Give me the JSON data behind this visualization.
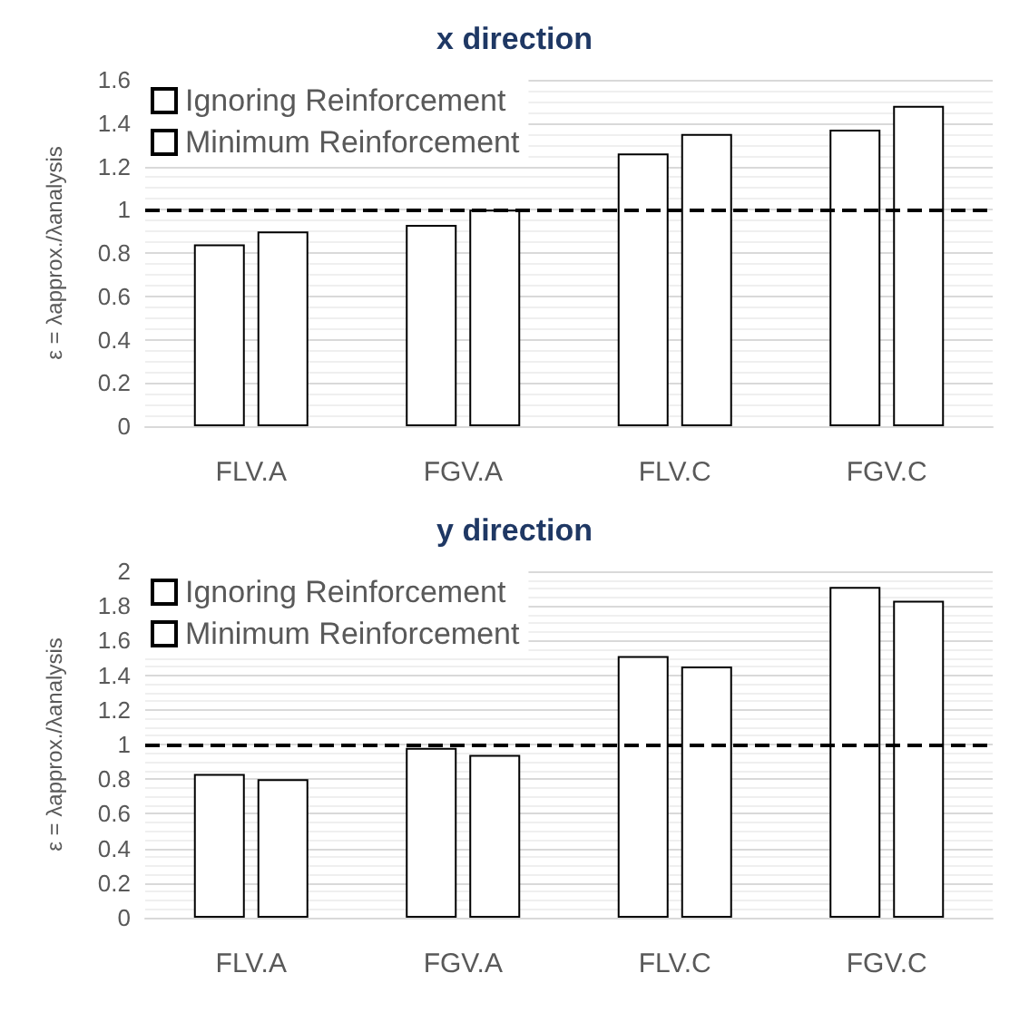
{
  "chart_data": [
    {
      "type": "bar",
      "title": "x direction",
      "ylabel": "ε = λapprox./λanalysis",
      "categories": [
        "FLV.A",
        "FGV.A",
        "FLV.C",
        "FGV.C"
      ],
      "series": [
        {
          "name": "Ignoring Reinforcement",
          "color": "#ffffff",
          "values": [
            0.84,
            0.93,
            1.26,
            1.37
          ]
        },
        {
          "name": "Minimum Reinforcement",
          "color": "#ffffff",
          "values": [
            0.9,
            1.0,
            1.35,
            1.48
          ]
        }
      ],
      "ylim": [
        0,
        1.6
      ],
      "yticks": [
        0,
        0.2,
        0.4,
        0.6,
        0.8,
        1,
        1.2,
        1.4,
        1.6
      ],
      "grid": "y",
      "legend": "top left",
      "ref_lines": [
        {
          "axis": "y",
          "value": 1,
          "color": "#000000",
          "line_style": "dashed"
        }
      ]
    },
    {
      "type": "bar",
      "title": "y direction",
      "ylabel": "ε = λapprox./λanalysis",
      "categories": [
        "FLV.A",
        "FGV.A",
        "FLV.C",
        "FGV.C"
      ],
      "series": [
        {
          "name": "Ignoring Reinforcement",
          "color": "#ffffff",
          "values": [
            0.83,
            0.98,
            1.51,
            1.91
          ]
        },
        {
          "name": "Minimum Reinforcement",
          "color": "#ffffff",
          "values": [
            0.8,
            0.94,
            1.45,
            1.83
          ]
        }
      ],
      "ylim": [
        0,
        2
      ],
      "yticks": [
        0,
        0.2,
        0.4,
        0.6,
        0.8,
        1,
        1.2,
        1.4,
        1.6,
        1.8,
        2
      ],
      "grid": "y",
      "legend": "top left",
      "ref_lines": [
        {
          "axis": "y",
          "value": 1,
          "color": "#000000",
          "line_style": "dashed"
        }
      ]
    }
  ]
}
